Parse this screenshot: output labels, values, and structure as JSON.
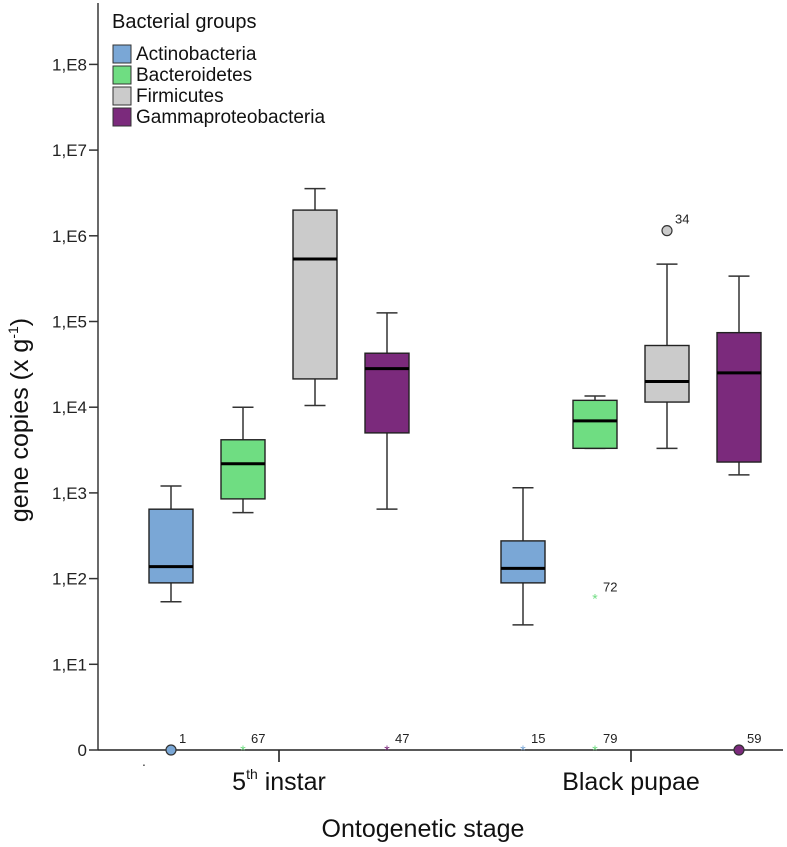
{
  "chart_data": {
    "type": "box",
    "title": "",
    "xlabel": "Ontogenetic stage",
    "ylabel": "gene copies (x g-1)",
    "ylabel_parts": {
      "main": "gene copies (x g",
      "sup": "-1",
      "close": ")"
    },
    "y_scale": "log10",
    "ylim_log10": [
      0,
      8.6
    ],
    "y_ticks": [
      {
        "label": "0",
        "log10": 0
      },
      {
        "label": "1,E1",
        "log10": 1
      },
      {
        "label": "1,E2",
        "log10": 2
      },
      {
        "label": "1,E3",
        "log10": 3
      },
      {
        "label": "1,E4",
        "log10": 4
      },
      {
        "label": "1,E5",
        "log10": 5
      },
      {
        "label": "1,E6",
        "log10": 6
      },
      {
        "label": "1,E7",
        "log10": 7
      },
      {
        "label": "1,E8",
        "log10": 8
      }
    ],
    "categories": [
      {
        "main": "5",
        "sup": "th",
        "rest": " instar"
      },
      {
        "main": "Black pupae",
        "sup": "",
        "rest": ""
      }
    ],
    "legend": {
      "title": "Bacterial groups",
      "position": "top-left"
    },
    "series": [
      {
        "name": "Actinobacteria",
        "color": "#7aa7d6",
        "boxes": [
          {
            "whisker_low": 1.73,
            "q1": 1.95,
            "median": 2.14,
            "q3": 2.81,
            "whisker_high": 3.08
          },
          {
            "whisker_low": 1.46,
            "q1": 1.95,
            "median": 2.12,
            "q3": 2.44,
            "whisker_high": 3.06
          }
        ]
      },
      {
        "name": "Bacteroidetes",
        "color": "#6fdd82",
        "boxes": [
          {
            "whisker_low": 2.77,
            "q1": 2.93,
            "median": 3.34,
            "q3": 3.62,
            "whisker_high": 4.0
          },
          {
            "whisker_low": 3.52,
            "q1": 3.52,
            "median": 3.84,
            "q3": 4.08,
            "whisker_high": 4.13
          }
        ]
      },
      {
        "name": "Firmicutes",
        "color": "#cbcbcb",
        "boxes": [
          {
            "whisker_low": 4.02,
            "q1": 4.33,
            "median": 5.73,
            "q3": 6.3,
            "whisker_high": 6.55
          },
          {
            "whisker_low": 3.52,
            "q1": 4.06,
            "median": 4.3,
            "q3": 4.72,
            "whisker_high": 5.67
          }
        ]
      },
      {
        "name": "Gammaproteobacteria",
        "color": "#7b2a7c",
        "boxes": [
          {
            "whisker_low": 2.81,
            "q1": 3.7,
            "median": 4.45,
            "q3": 4.63,
            "whisker_high": 5.1
          },
          {
            "whisker_low": 3.21,
            "q1": 3.36,
            "median": 4.4,
            "q3": 4.87,
            "whisker_high": 5.53
          }
        ]
      }
    ],
    "outliers": [
      {
        "label": "1",
        "series": 0,
        "category": 0,
        "log10": 0,
        "marker": "circle"
      },
      {
        "label": "67",
        "series": 1,
        "category": 0,
        "log10": 0,
        "marker": "star"
      },
      {
        "label": "47",
        "series": 3,
        "category": 0,
        "log10": 0,
        "marker": "star"
      },
      {
        "label": "15",
        "series": 0,
        "category": 1,
        "log10": 0,
        "marker": "star"
      },
      {
        "label": "79",
        "series": 1,
        "category": 1,
        "log10": 0,
        "marker": "star"
      },
      {
        "label": "59",
        "series": 3,
        "category": 1,
        "log10": 0,
        "marker": "circle"
      },
      {
        "label": "72",
        "series": 1,
        "category": 1,
        "log10": 1.77,
        "marker": "star"
      },
      {
        "label": "34",
        "series": 2,
        "category": 1,
        "log10": 6.06,
        "marker": "circle"
      }
    ],
    "stray_mark": "."
  }
}
